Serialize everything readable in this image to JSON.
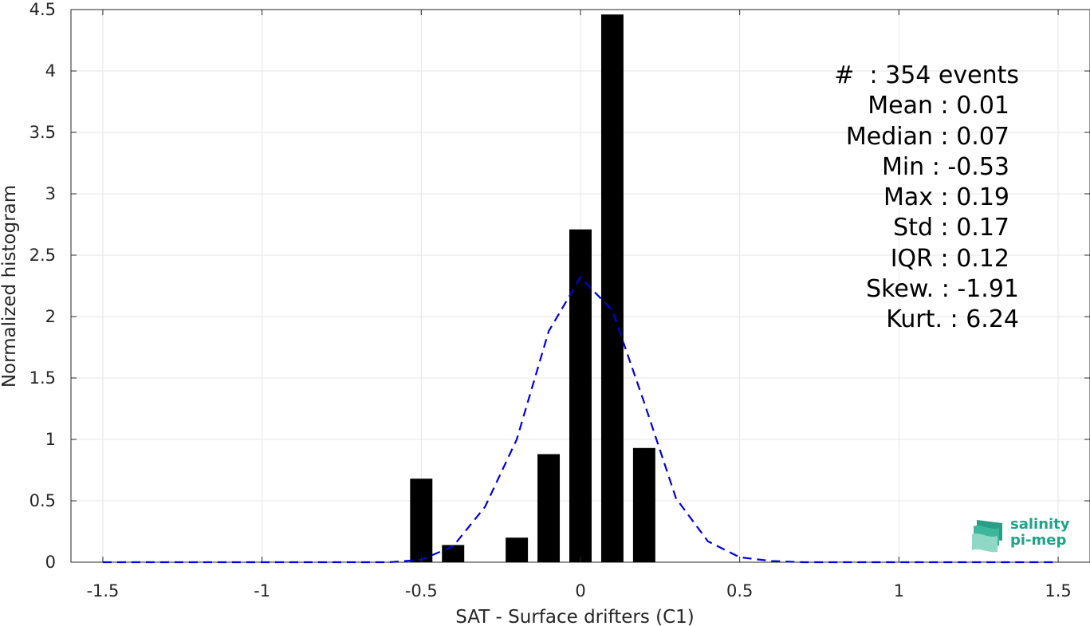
{
  "chart_data": {
    "type": "bar",
    "xlabel": "SAT - Surface drifters (C1)",
    "ylabel": "Normalized histogram",
    "xlim": [
      -1.6,
      1.6
    ],
    "ylim": [
      0,
      4.5
    ],
    "xticks": [
      -1.5,
      -1,
      -0.5,
      0,
      0.5,
      1,
      1.5
    ],
    "xtick_labels": [
      "-1.5",
      "-1",
      "-0.5",
      "0",
      "0.5",
      "1",
      "1.5"
    ],
    "yticks": [
      0,
      0.5,
      1,
      1.5,
      2,
      2.5,
      3,
      3.5,
      4,
      4.5
    ],
    "ytick_labels": [
      "0",
      "0.5",
      "1",
      "1.5",
      "2",
      "2.5",
      "3",
      "3.5",
      "4",
      "4.5"
    ],
    "grid": true,
    "bar_width": 0.07,
    "series": [
      {
        "type": "bar",
        "color": "#000000",
        "x": [
          -0.5,
          -0.4,
          -0.2,
          -0.1,
          0.0,
          0.1,
          0.2
        ],
        "values": [
          0.68,
          0.14,
          0.2,
          0.88,
          2.71,
          4.46,
          0.93
        ]
      },
      {
        "type": "line",
        "style": "dashed",
        "color": "#0000dd",
        "x": [
          -1.5,
          -1.4,
          -1.3,
          -1.2,
          -1.1,
          -1.0,
          -0.9,
          -0.8,
          -0.7,
          -0.6,
          -0.5,
          -0.4,
          -0.3,
          -0.2,
          -0.1,
          0.0,
          0.1,
          0.2,
          0.3,
          0.4,
          0.5,
          0.6,
          0.7,
          0.8,
          0.9,
          1.0,
          1.1,
          1.2,
          1.3,
          1.4,
          1.5
        ],
        "values": [
          0,
          0,
          0,
          0,
          0,
          0,
          0,
          0,
          0,
          0,
          0.02,
          0.13,
          0.45,
          1.0,
          1.88,
          2.32,
          2.05,
          1.3,
          0.52,
          0.17,
          0.04,
          0.01,
          0,
          0,
          0,
          0,
          0,
          0,
          0,
          0,
          0
        ]
      }
    ]
  },
  "stats": [
    "#  : 354 events",
    "Mean : 0.01",
    "Median : 0.07",
    "Min : -0.53",
    "Max : 0.19",
    "Std : 0.17",
    "IQR : 0.12",
    "Skew. : -1.91",
    "Kurt. : 6.24"
  ],
  "logo": {
    "line1": "salinity",
    "line2": "pi-mep",
    "color": "#1aa58a"
  }
}
